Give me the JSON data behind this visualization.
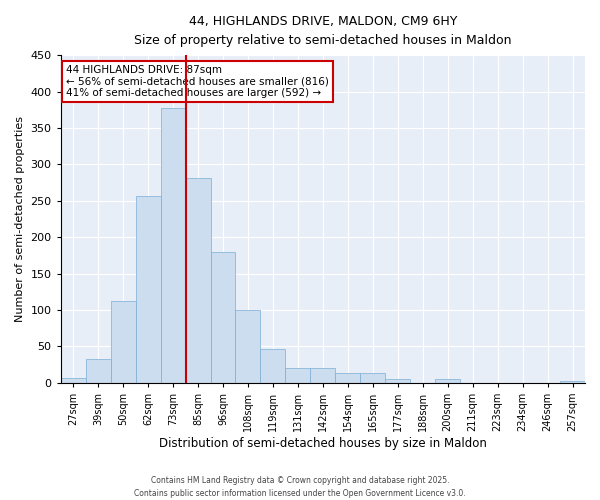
{
  "title": "44, HIGHLANDS DRIVE, MALDON, CM9 6HY",
  "subtitle": "Size of property relative to semi-detached houses in Maldon",
  "xlabel": "Distribution of semi-detached houses by size in Maldon",
  "ylabel": "Number of semi-detached properties",
  "bin_labels": [
    "27sqm",
    "39sqm",
    "50sqm",
    "62sqm",
    "73sqm",
    "85sqm",
    "96sqm",
    "108sqm",
    "119sqm",
    "131sqm",
    "142sqm",
    "154sqm",
    "165sqm",
    "177sqm",
    "188sqm",
    "200sqm",
    "211sqm",
    "223sqm",
    "234sqm",
    "246sqm",
    "257sqm"
  ],
  "bar_values": [
    7,
    33,
    113,
    256,
    378,
    281,
    180,
    100,
    46,
    20,
    20,
    13,
    13,
    5,
    0,
    6,
    0,
    0,
    0,
    0,
    2
  ],
  "bar_color": "#ccddf0",
  "bar_edge_color": "#7aadd4",
  "vline_color": "#cc0000",
  "annotation_title": "44 HIGHLANDS DRIVE: 87sqm",
  "annotation_line1": "← 56% of semi-detached houses are smaller (816)",
  "annotation_line2": "41% of semi-detached houses are larger (592) →",
  "annotation_box_color": "#cc0000",
  "ylim": [
    0,
    450
  ],
  "yticks": [
    0,
    50,
    100,
    150,
    200,
    250,
    300,
    350,
    400,
    450
  ],
  "bg_color": "#e8eef8",
  "footer_line1": "Contains HM Land Registry data © Crown copyright and database right 2025.",
  "footer_line2": "Contains public sector information licensed under the Open Government Licence v3.0."
}
